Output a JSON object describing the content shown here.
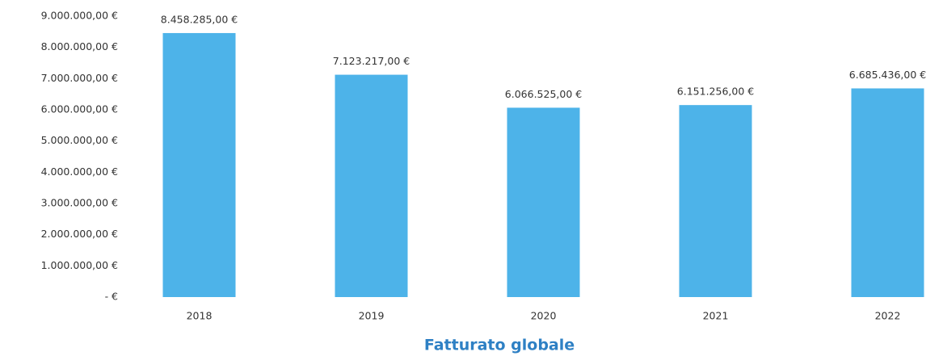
{
  "chart_data": {
    "type": "bar",
    "title": "Fatturato globale",
    "categories": [
      "2018",
      "2019",
      "2020",
      "2021",
      "2022"
    ],
    "values": [
      8458285,
      7123217,
      6066525,
      6151256,
      6685436
    ],
    "value_labels": [
      "8.458.285,00 €",
      "7.123.217,00 €",
      "6.066.525,00 €",
      "6.151.256,00 €",
      "6.685.436,00 €"
    ],
    "color": "#4db3e9",
    "ylim": [
      0,
      9000000
    ],
    "yticks": [
      {
        "value": 0,
        "label": "-  €"
      },
      {
        "value": 1000000,
        "label": "1.000.000,00 €"
      },
      {
        "value": 2000000,
        "label": "2.000.000,00 €"
      },
      {
        "value": 3000000,
        "label": "3.000.000,00 €"
      },
      {
        "value": 4000000,
        "label": "4.000.000,00 €"
      },
      {
        "value": 5000000,
        "label": "5.000.000,00 €"
      },
      {
        "value": 6000000,
        "label": "6.000.000,00 €"
      },
      {
        "value": 7000000,
        "label": "7.000.000,00 €"
      },
      {
        "value": 8000000,
        "label": "8.000.000,00 €"
      },
      {
        "value": 9000000,
        "label": "9.000.000,00 €"
      }
    ],
    "grid": false
  }
}
